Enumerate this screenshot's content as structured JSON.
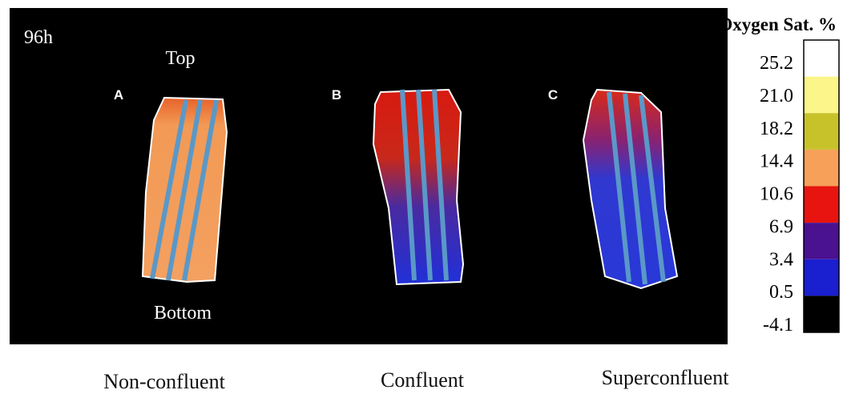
{
  "panel": {
    "time": "96h",
    "top_label": "Top",
    "bottom_label": "Bottom",
    "samples": [
      {
        "letter": "A",
        "caption": "Non-confluent"
      },
      {
        "letter": "B",
        "caption": "Confluent"
      },
      {
        "letter": "C",
        "caption": "Superconfluent"
      }
    ]
  },
  "legend": {
    "title": "Oxygen Sat. %",
    "colors": [
      "#ffffff",
      "#fbf58a",
      "#c8c22a",
      "#f7a05a",
      "#e8140f",
      "#4a1190",
      "#1a1fd0",
      "#000000"
    ],
    "labels": [
      "25.2",
      "21.0",
      "18.2",
      "14.4",
      "10.6",
      "6.9",
      "3.4",
      "0.5",
      "-4.1"
    ]
  }
}
